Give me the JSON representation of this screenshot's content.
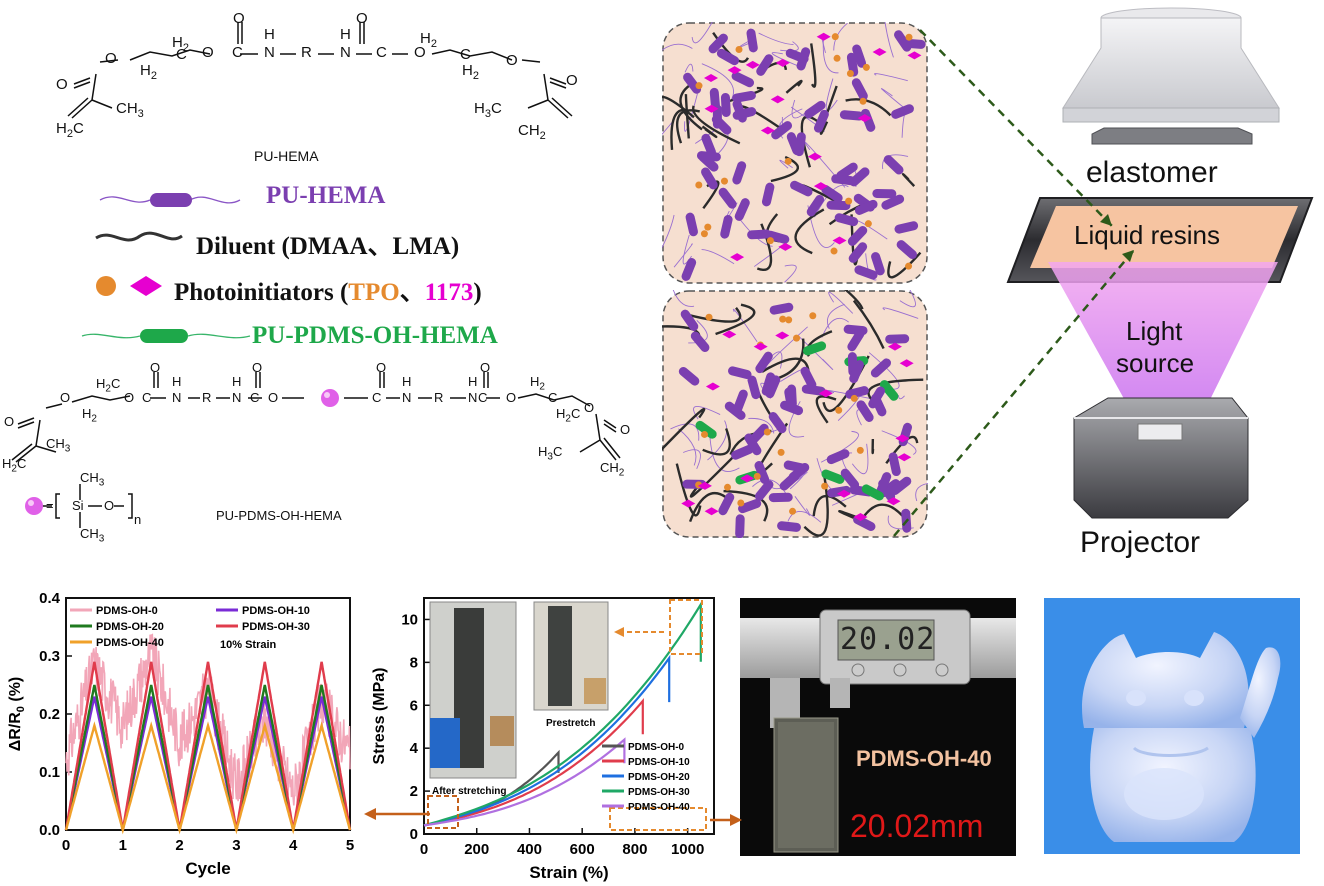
{
  "top_left": {
    "structure1_label": "PU-HEMA",
    "structure2_label": "PU-PDMS-OH-HEMA",
    "chem1": {
      "O_left": "O",
      "O_ester": "O",
      "CH2_a": "H",
      "CH2_a2": "2",
      "C_a": "C",
      "H2_a": "H",
      "H2_a2": "2",
      "O1": "O",
      "C1": "C",
      "Ocarb1": "O",
      "N1": "N",
      "H1": "H",
      "R": "R",
      "N2": "N",
      "H2": "H",
      "C2": "C",
      "Ocarb2": "O",
      "O2": "O",
      "CH2_b": "H",
      "CH2_b2": "2",
      "C_b": "C",
      "H2_b": "H",
      "H2_b2": "2",
      "O_b": "O",
      "O_right": "O",
      "CH3_left": "CH",
      "CH3_left2": "3",
      "H2C_left": "H",
      "H2C_left2": "2",
      "C_left": "C",
      "H3C_right": "H",
      "H3C_right2": "3",
      "C_right": "C",
      "CH2_right": "CH",
      "CH2_right2": "2"
    },
    "chem2": {
      "siloxane_eq": "=",
      "si": "Si",
      "o": "O",
      "ch3_top": "CH",
      "ch3_top2": "3",
      "ch3_bot": "CH",
      "ch3_bot2": "3",
      "n": "n",
      "O_left": "O",
      "C_left": "C",
      "CH3_left": "CH",
      "CH3_left2": "3",
      "H2C_left": "H",
      "H2C_left2": "2",
      "C_left2": "C",
      "O_r": "O",
      "O_r2": "O",
      "H3C_right": "H",
      "H3C_right2": "3",
      "C_right": "C",
      "CH2_right": "CH",
      "CH2_right2": "2",
      "chain_left": "O",
      "chain_right": "O",
      "H2_1": "H",
      "H2_1b": "2",
      "H2_2": "H",
      "H2_2b": "2",
      "C_a": "C",
      "O_a": "O",
      "C_b": "C",
      "O_b": "O",
      "N_a": "N",
      "H_a": "H",
      "R_a": "R",
      "N_b": "N",
      "H_b": "H",
      "C_c": "C",
      "O_c": "O",
      "N_c": "N",
      "H_c": "H",
      "R_b": "R",
      "N_d": "N",
      "H_d": "H",
      "C_d": "C",
      "O_d": "O",
      "H2_3": "H",
      "H2_3b": "2",
      "H2_4": "H",
      "H2_4b": "2",
      "C_e": "C",
      "C_f": "C",
      "O_e": "O",
      "O_f": "O"
    }
  },
  "legend": {
    "pu_hema": "PU-HEMA",
    "diluent_prefix": "Diluent",
    "diluent_list": "(DMAA、LMA)",
    "photo_prefix": "Photoinitiators",
    "photo_open": "(",
    "photo_tpo": "TPO",
    "photo_sep": "、",
    "photo_1173": "1173",
    "photo_close": ")",
    "pu_pdms": "PU-PDMS-OH-HEMA"
  },
  "printer": {
    "elastomer": "elastomer",
    "liquid_resins": "Liquid resins",
    "light": "Light",
    "source": "source",
    "projector": "Projector"
  },
  "colors": {
    "purple": "#7b3fb0",
    "green": "#1ea84a",
    "orange": "#e58a2e",
    "magenta": "#e600d0",
    "network_bg": "#f6dfd0"
  },
  "chart_resistance": {
    "type": "line",
    "xlabel": "Cycle",
    "ylabel": "ΔR/R",
    "ylabel_sub": "0",
    "ylabel_unit": "(%)",
    "xlim": [
      0,
      5
    ],
    "ylim": [
      0,
      0.4
    ],
    "xticks": [
      "0",
      "1",
      "2",
      "3",
      "4",
      "5"
    ],
    "yticks": [
      "0.0",
      "0.1",
      "0.2",
      "0.3",
      "0.4"
    ],
    "annotation": "10% Strain",
    "series": [
      {
        "name": "PDMS-OH-0",
        "color": "#f2a6b8",
        "peak": 0.26,
        "noisy": true
      },
      {
        "name": "PDMS-OH-10",
        "color": "#7a2bd6",
        "peak": 0.23
      },
      {
        "name": "PDMS-OH-20",
        "color": "#1f7a1f",
        "peak": 0.25
      },
      {
        "name": "PDMS-OH-30",
        "color": "#e03c4c",
        "peak": 0.29
      },
      {
        "name": "PDMS-OH-40",
        "color": "#f0a12a",
        "peak": 0.18
      }
    ]
  },
  "chart_stress": {
    "type": "line",
    "xlabel": "Strain (%)",
    "ylabel": "Stress (MPa)",
    "xlim": [
      0,
      1100
    ],
    "ylim": [
      0,
      11
    ],
    "xticks": [
      "0",
      "200",
      "400",
      "600",
      "800",
      "1000"
    ],
    "yticks": [
      "0",
      "2",
      "4",
      "6",
      "8",
      "10"
    ],
    "inset_left_caption": "After stretching",
    "inset_right_caption": "Prestretch",
    "series": [
      {
        "name": "PDMS-OH-0",
        "color": "#555555",
        "break_x": 510,
        "break_y": 3.8
      },
      {
        "name": "PDMS-OH-10",
        "color": "#e03c4c",
        "break_x": 830,
        "break_y": 6.2
      },
      {
        "name": "PDMS-OH-20",
        "color": "#1e6fe0",
        "break_x": 930,
        "break_y": 8.2
      },
      {
        "name": "PDMS-OH-30",
        "color": "#1fa866",
        "break_x": 1050,
        "break_y": 10.7
      },
      {
        "name": "PDMS-OH-40",
        "color": "#b070e0",
        "break_x": 760,
        "break_y": 4.4
      }
    ]
  },
  "photo_caliper": {
    "display": "20.02",
    "sample_label": "PDMS-OH-40",
    "measurement": "20.02mm"
  }
}
